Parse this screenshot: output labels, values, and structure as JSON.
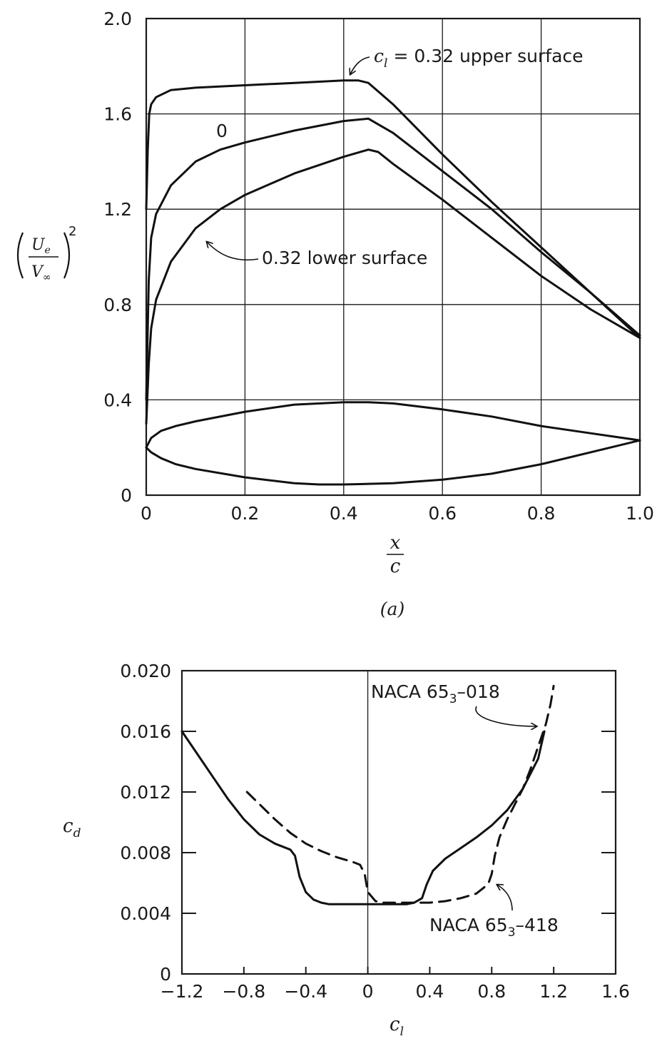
{
  "chart_data": [
    {
      "type": "line",
      "panel_label": "(a)",
      "xlabel": {
        "num": "x",
        "den": "c"
      },
      "ylabel": {
        "num": "U",
        "num_sub": "e",
        "den": "V",
        "den_sub": "∞",
        "power": "2"
      },
      "xlim": [
        0,
        1.0
      ],
      "ylim": [
        0,
        2.0
      ],
      "x_ticks": [
        0,
        0.2,
        0.4,
        0.6,
        0.8,
        1.0
      ],
      "x_tick_labels": [
        "0",
        "0.2",
        "0.4",
        "0.6",
        "0.8",
        "1.0"
      ],
      "y_ticks": [
        0,
        0.4,
        0.8,
        1.2,
        1.6,
        2.0
      ],
      "y_tick_labels": [
        "0",
        "0.4",
        "0.8",
        "1.2",
        "1.6",
        "2.0"
      ],
      "grid": true,
      "series": [
        {
          "key": "upper",
          "x": [
            0,
            0.003,
            0.006,
            0.01,
            0.02,
            0.05,
            0.1,
            0.2,
            0.3,
            0.4,
            0.43,
            0.45,
            0.5,
            0.6,
            0.7,
            0.8,
            0.9,
            1.0
          ],
          "y": [
            1.2,
            1.45,
            1.6,
            1.64,
            1.67,
            1.7,
            1.71,
            1.72,
            1.73,
            1.74,
            1.74,
            1.73,
            1.64,
            1.43,
            1.23,
            1.04,
            0.85,
            0.67
          ]
        },
        {
          "key": "zero",
          "x": [
            0,
            0.005,
            0.01,
            0.02,
            0.05,
            0.1,
            0.15,
            0.2,
            0.3,
            0.4,
            0.45,
            0.5,
            0.6,
            0.7,
            0.8,
            0.9,
            1.0
          ],
          "y": [
            0.4,
            0.9,
            1.08,
            1.18,
            1.3,
            1.4,
            1.45,
            1.48,
            1.53,
            1.57,
            1.58,
            1.52,
            1.36,
            1.2,
            1.02,
            0.85,
            0.66
          ]
        },
        {
          "key": "lower",
          "x": [
            0,
            0.005,
            0.01,
            0.02,
            0.05,
            0.1,
            0.15,
            0.2,
            0.3,
            0.4,
            0.45,
            0.47,
            0.5,
            0.6,
            0.7,
            0.8,
            0.9,
            1.0
          ],
          "y": [
            0.3,
            0.55,
            0.7,
            0.82,
            0.98,
            1.12,
            1.2,
            1.26,
            1.35,
            1.42,
            1.45,
            1.44,
            1.39,
            1.24,
            1.08,
            0.92,
            0.78,
            0.66
          ]
        },
        {
          "key": "profile-upper",
          "x": [
            0,
            0.01,
            0.03,
            0.06,
            0.1,
            0.2,
            0.3,
            0.4,
            0.45,
            0.5,
            0.6,
            0.7,
            0.8,
            0.9,
            1.0
          ],
          "y": [
            0.2,
            0.24,
            0.27,
            0.29,
            0.31,
            0.35,
            0.38,
            0.39,
            0.39,
            0.385,
            0.36,
            0.33,
            0.29,
            0.26,
            0.23
          ]
        },
        {
          "key": "profile-lower",
          "x": [
            0,
            0.01,
            0.03,
            0.06,
            0.1,
            0.2,
            0.3,
            0.35,
            0.4,
            0.5,
            0.6,
            0.7,
            0.8,
            0.9,
            1.0
          ],
          "y": [
            0.2,
            0.18,
            0.155,
            0.13,
            0.11,
            0.075,
            0.05,
            0.045,
            0.045,
            0.05,
            0.065,
            0.09,
            0.13,
            0.18,
            0.23
          ]
        }
      ],
      "annotations": [
        {
          "key": "upper",
          "label": "= 0.32 upper surface",
          "math": "c",
          "math_sub": "l"
        },
        {
          "key": "zero",
          "label": "0"
        },
        {
          "key": "lower",
          "label": "0.32 lower surface"
        }
      ]
    },
    {
      "type": "line",
      "xlabel": {
        "text": "c",
        "sub": "l"
      },
      "ylabel": {
        "text": "c",
        "sub": "d"
      },
      "xlim": [
        -1.2,
        1.6
      ],
      "ylim": [
        0,
        0.02
      ],
      "x_ticks": [
        -1.2,
        -0.8,
        -0.4,
        0,
        0.4,
        0.8,
        1.2,
        1.6
      ],
      "x_tick_labels": [
        "−1.2",
        "−0.8",
        "−0.4",
        "0",
        "0.4",
        "0.8",
        "1.2",
        "1.6"
      ],
      "y_ticks": [
        0,
        0.004,
        0.008,
        0.012,
        0.016,
        0.02
      ],
      "y_tick_labels": [
        "0",
        "0.004",
        "0.008",
        "0.012",
        "0.016",
        "0.020"
      ],
      "grid": false,
      "series": [
        {
          "key": "naca-018",
          "style": "solid",
          "x": [
            -1.2,
            -1.1,
            -1.0,
            -0.9,
            -0.8,
            -0.7,
            -0.6,
            -0.5,
            -0.47,
            -0.44,
            -0.4,
            -0.35,
            -0.3,
            -0.25,
            0,
            0.25,
            0.3,
            0.35,
            0.38,
            0.42,
            0.5,
            0.6,
            0.7,
            0.8,
            0.9,
            1.0,
            1.1,
            1.14
          ],
          "y": [
            0.016,
            0.0145,
            0.013,
            0.0115,
            0.0102,
            0.0092,
            0.0086,
            0.0082,
            0.0078,
            0.0064,
            0.0054,
            0.0049,
            0.0047,
            0.0046,
            0.0046,
            0.0046,
            0.0047,
            0.005,
            0.0059,
            0.0068,
            0.0076,
            0.0083,
            0.009,
            0.0098,
            0.0108,
            0.0122,
            0.0142,
            0.016
          ]
        },
        {
          "key": "naca-418",
          "style": "dashed",
          "x": [
            -0.78,
            -0.7,
            -0.6,
            -0.5,
            -0.4,
            -0.3,
            -0.2,
            -0.1,
            -0.05,
            -0.02,
            0,
            0.05,
            0.1,
            0.2,
            0.3,
            0.4,
            0.5,
            0.6,
            0.7,
            0.75,
            0.78,
            0.8,
            0.82,
            0.85,
            0.9,
            0.95,
            1.0,
            1.05,
            1.1,
            1.15,
            1.18,
            1.2
          ],
          "y": [
            0.012,
            0.0112,
            0.0102,
            0.0093,
            0.0086,
            0.0081,
            0.0077,
            0.0074,
            0.0072,
            0.0066,
            0.0054,
            0.0048,
            0.0047,
            0.0047,
            0.0047,
            0.0047,
            0.0048,
            0.005,
            0.0053,
            0.0057,
            0.006,
            0.0066,
            0.0078,
            0.009,
            0.0102,
            0.0112,
            0.0122,
            0.0135,
            0.015,
            0.0165,
            0.0178,
            0.019
          ]
        }
      ],
      "annotations": [
        {
          "key": "naca-018",
          "label": "NACA 65",
          "sub": "3",
          "suffix": "–018"
        },
        {
          "key": "naca-418",
          "label": "NACA 65",
          "sub": "3",
          "suffix": "–418"
        }
      ]
    }
  ]
}
